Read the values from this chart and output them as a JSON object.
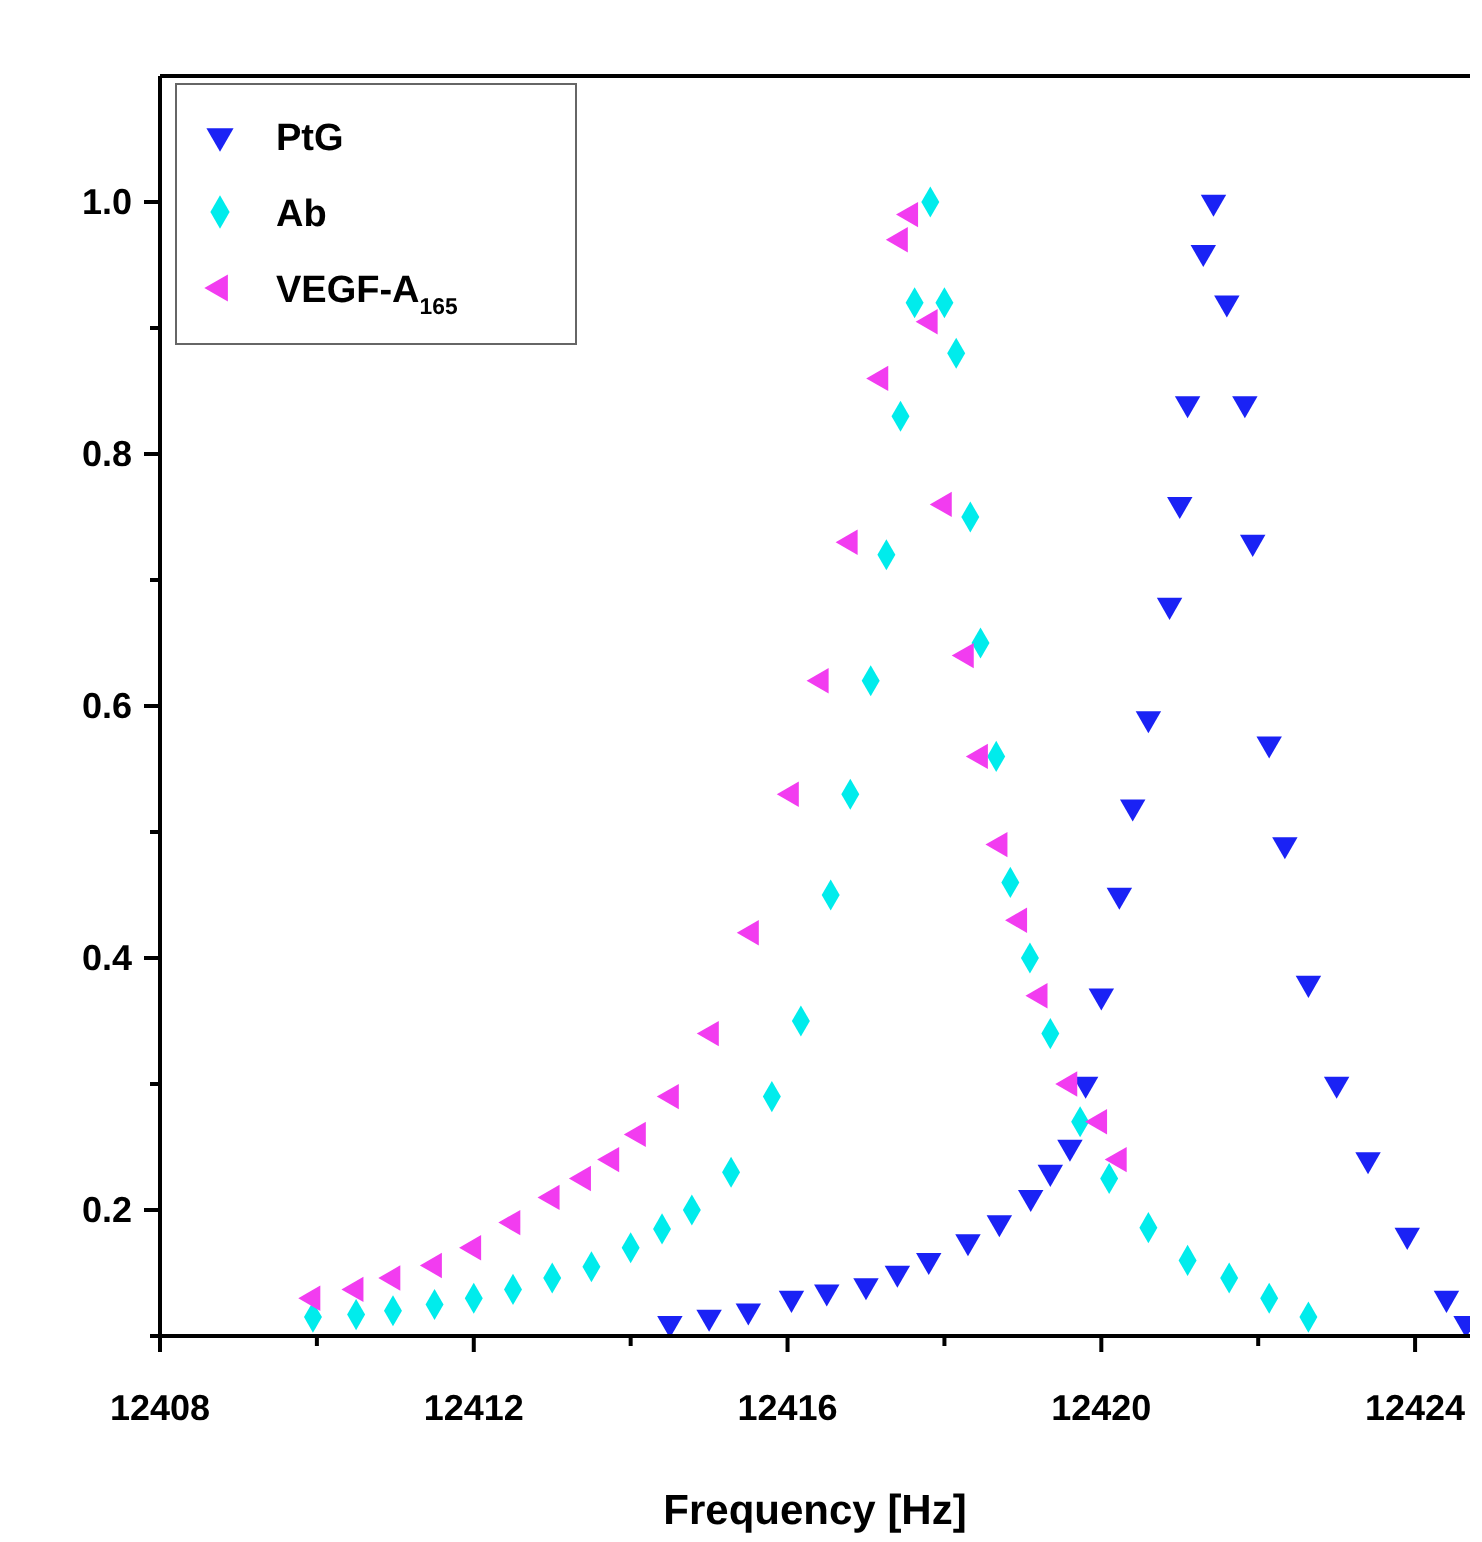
{
  "chart_data": {
    "type": "scatter",
    "xlabel": "Frequency [Hz]",
    "xlim": [
      12408,
      12424.7
    ],
    "ylim": [
      0.1,
      1.1
    ],
    "xticks": [
      12408,
      {
        "value": 12410,
        "label": null
      },
      12412,
      {
        "value": 12414,
        "label": null
      },
      12416,
      {
        "value": 12418,
        "label": null
      },
      12420,
      {
        "value": 12422,
        "label": null
      },
      12424
    ],
    "yticks": [
      {
        "value": 0.1,
        "label": null
      },
      0.2,
      {
        "value": 0.3,
        "label": null
      },
      0.4,
      {
        "value": 0.5,
        "label": null
      },
      0.6,
      {
        "value": 0.7,
        "label": null
      },
      0.8,
      {
        "value": 0.9,
        "label": null
      },
      {
        "value": 1.0,
        "label": "1.0"
      }
    ],
    "legend": "top left",
    "grid": false,
    "series": [
      {
        "name": "PtG",
        "color": "#1a22f5",
        "marker": "triangle",
        "x": [
          12414.5,
          12415.0,
          12415.5,
          12416.05,
          12416.5,
          12417.0,
          12417.4,
          12417.8,
          12418.3,
          12418.7,
          12419.1,
          12419.35,
          12419.6,
          12419.8,
          12420.0,
          12420.23,
          12420.4,
          12420.6,
          12420.87,
          12421.0,
          12421.1,
          12421.3,
          12421.43,
          12421.6,
          12421.83,
          12421.93,
          12422.14,
          12422.34,
          12422.64,
          12423.0,
          12423.4,
          12423.9,
          12424.4,
          12424.65
        ],
        "values": [
          0.11,
          0.115,
          0.12,
          0.13,
          0.135,
          0.14,
          0.15,
          0.16,
          0.175,
          0.19,
          0.21,
          0.23,
          0.25,
          0.3,
          0.37,
          0.45,
          0.52,
          0.59,
          0.68,
          0.76,
          0.84,
          0.96,
          1.0,
          0.92,
          0.84,
          0.73,
          0.57,
          0.49,
          0.38,
          0.3,
          0.24,
          0.18,
          0.13,
          0.11
        ]
      },
      {
        "name": "Ab",
        "color": "#00ecec",
        "marker": "diamond",
        "x": [
          12409.95,
          12410.5,
          12410.97,
          12411.5,
          12412.0,
          12412.5,
          12413.0,
          12413.5,
          12414.0,
          12414.4,
          12414.78,
          12415.28,
          12415.8,
          12416.17,
          12416.55,
          12416.8,
          12417.06,
          12417.26,
          12417.44,
          12417.62,
          12417.82,
          12418.0,
          12418.15,
          12418.33,
          12418.46,
          12418.66,
          12418.84,
          12419.09,
          12419.35,
          12419.73,
          12420.1,
          12420.6,
          12421.1,
          12421.63,
          12422.14,
          12422.64
        ],
        "values": [
          0.115,
          0.117,
          0.12,
          0.125,
          0.13,
          0.137,
          0.146,
          0.155,
          0.17,
          0.185,
          0.2,
          0.23,
          0.29,
          0.35,
          0.45,
          0.53,
          0.62,
          0.72,
          0.83,
          0.92,
          1.0,
          0.92,
          0.88,
          0.75,
          0.65,
          0.56,
          0.46,
          0.4,
          0.34,
          0.27,
          0.225,
          0.186,
          0.16,
          0.146,
          0.13,
          0.115
        ]
      },
      {
        "name": "VEGF-A$_{165}$",
        "color": "#f23cf0",
        "marker": "triangle",
        "x": [
          12409.95,
          12410.5,
          12410.97,
          12411.5,
          12412.0,
          12412.5,
          12413.0,
          12413.4,
          12413.76,
          12414.1,
          12414.52,
          12415.03,
          12415.54,
          12416.05,
          12416.43,
          12416.8,
          12417.19,
          12417.44,
          12417.57,
          12417.82,
          12418.0,
          12418.28,
          12418.46,
          12418.71,
          12418.96,
          12419.22,
          12419.6,
          12419.98,
          12420.23
        ],
        "values": [
          0.13,
          0.137,
          0.146,
          0.156,
          0.17,
          0.19,
          0.21,
          0.225,
          0.24,
          0.26,
          0.29,
          0.34,
          0.42,
          0.53,
          0.62,
          0.73,
          0.86,
          0.97,
          0.99,
          0.905,
          0.76,
          0.64,
          0.56,
          0.49,
          0.43,
          0.37,
          0.3,
          0.27,
          0.24
        ]
      }
    ]
  }
}
